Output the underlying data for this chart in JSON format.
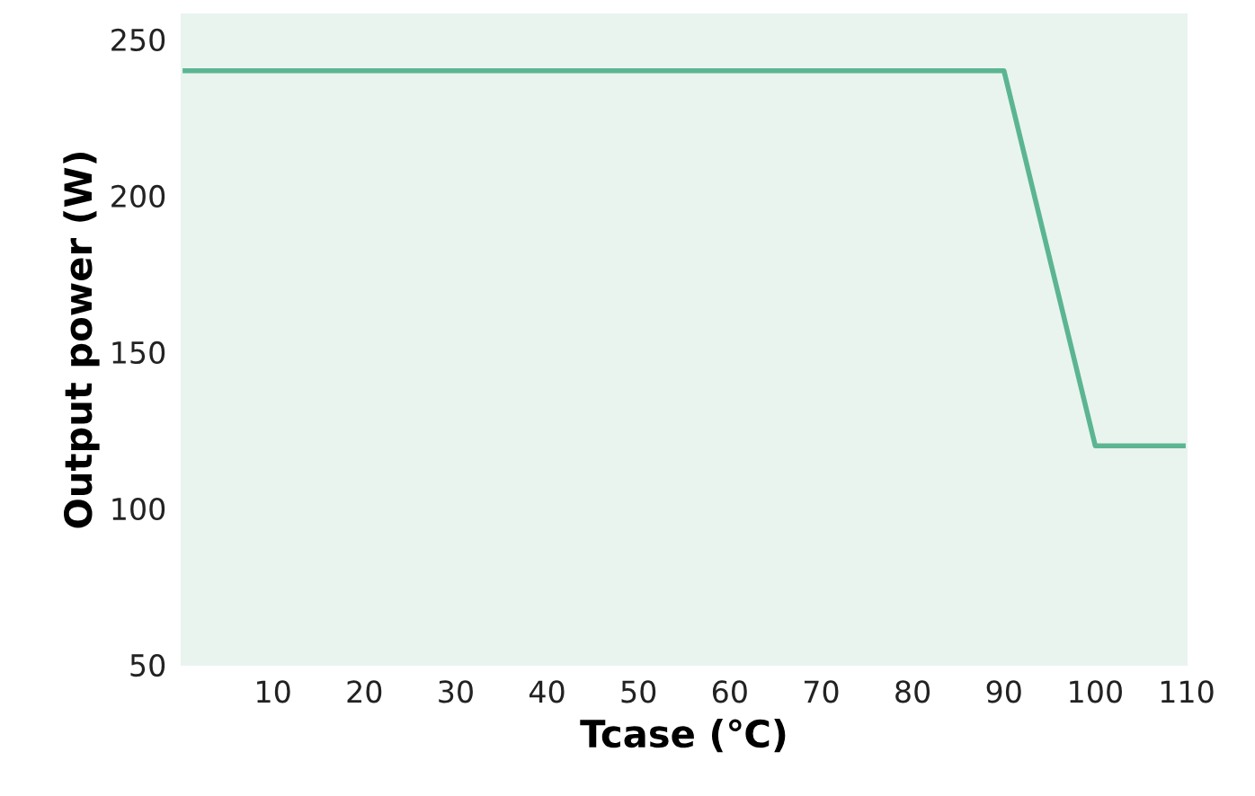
{
  "chart_data": {
    "type": "line",
    "xlabel": "Tcase (℃)",
    "ylabel": "Output power (W)",
    "x": [
      0,
      90,
      100,
      110
    ],
    "series": [
      {
        "color": "#5cb592",
        "values": [
          240,
          240,
          120,
          120
        ]
      }
    ],
    "xlim": [
      0,
      110
    ],
    "xticks": [
      10,
      20,
      30,
      40,
      50,
      60,
      70,
      80,
      90,
      100,
      110
    ],
    "ylim": [
      50,
      258
    ],
    "yticks": [
      50,
      100,
      150,
      200,
      250
    ],
    "grid": false,
    "legend": false,
    "marker": "none",
    "line_style": "solid"
  }
}
